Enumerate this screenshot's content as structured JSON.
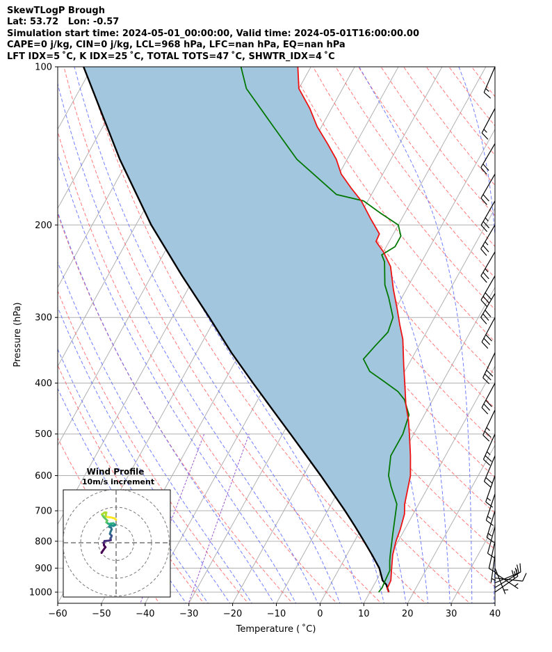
{
  "header": {
    "title": "SkewTLogP Brough",
    "location": "Lat: 53.72   Lon: -0.57",
    "times": "Simulation start time: 2024-05-01_00:00:00, Valid time: 2024-05-01T16:00:00.00",
    "indices_1": "CAPE=0 j/kg, CIN=0 j/kg, LCL=968 hPa, LFC=nan hPa, EQ=nan hPa",
    "indices_2": "LFT IDX=5 ˚C, K IDX=25 ˚C, TOTAL TOTS=47 ˚C, SHWTR_IDX=4 ˚C"
  },
  "chart_data": {
    "type": "line",
    "subtype": "skew-T log-P diagram",
    "xlabel": "Temperature ( ˚C)",
    "ylabel": "Pressure (hPa)",
    "xlim": [
      -60,
      40
    ],
    "ylim": [
      1050,
      100
    ],
    "y_scale": "log",
    "x_ticks": [
      "−60",
      "−50",
      "−40",
      "−30",
      "−20",
      "−10",
      "0",
      "10",
      "20",
      "30",
      "40"
    ],
    "y_ticks": [
      "100",
      "200",
      "300",
      "400",
      "500",
      "600",
      "700",
      "800",
      "900",
      "1000"
    ],
    "grid": true,
    "colors": {
      "temperature": "#ee1111",
      "dewpoint": "#007700",
      "parcel": "#000000",
      "area": "#a3c6df",
      "dry_adiabat": "#ff6060",
      "moist_adiabat": "#4d5fff",
      "mixing_ratio": "#9955cc",
      "isotherm": "#b0b0b0"
    },
    "series": [
      {
        "role": "temperature",
        "points": [
          [
            14.3,
            1000
          ],
          [
            13.5,
            985
          ],
          [
            13.3,
            950
          ],
          [
            12.2,
            910
          ],
          [
            10.5,
            850
          ],
          [
            9.5,
            800
          ],
          [
            9.0,
            760
          ],
          [
            8.0,
            710
          ],
          [
            6.8,
            680
          ],
          [
            4.5,
            600
          ],
          [
            2.0,
            550
          ],
          [
            -1.0,
            500
          ],
          [
            -3.0,
            470
          ],
          [
            -5.5,
            440
          ],
          [
            -8.5,
            400
          ],
          [
            -11.0,
            370
          ],
          [
            -14.5,
            330
          ],
          [
            -17.0,
            310
          ],
          [
            -19.5,
            290
          ],
          [
            -23.0,
            265
          ],
          [
            -26.5,
            240
          ],
          [
            -30.0,
            225
          ],
          [
            -33.0,
            215
          ],
          [
            -33.2,
            208
          ],
          [
            -37.0,
            195
          ],
          [
            -41.5,
            180
          ],
          [
            -45.5,
            170
          ],
          [
            -49.5,
            160
          ],
          [
            -52.5,
            150
          ],
          [
            -56.5,
            140
          ],
          [
            -61.0,
            130
          ],
          [
            -65.0,
            120
          ],
          [
            -70.0,
            110
          ],
          [
            -73.0,
            100
          ]
        ]
      },
      {
        "role": "dewpoint",
        "points": [
          [
            12.0,
            1000
          ],
          [
            12.2,
            980
          ],
          [
            12.0,
            950
          ],
          [
            11.8,
            910
          ],
          [
            10.5,
            870
          ],
          [
            9.8,
            845
          ],
          [
            8.0,
            780
          ],
          [
            5.0,
            680
          ],
          [
            1.5,
            630
          ],
          [
            -0.5,
            600
          ],
          [
            -2.5,
            550
          ],
          [
            -2.5,
            500
          ],
          [
            -3.5,
            460
          ],
          [
            -6.5,
            430
          ],
          [
            -9.0,
            415
          ],
          [
            -14.0,
            395
          ],
          [
            -18.0,
            380
          ],
          [
            -21.0,
            360
          ],
          [
            -20.0,
            340
          ],
          [
            -18.8,
            320
          ],
          [
            -19.5,
            300
          ],
          [
            -23.0,
            275
          ],
          [
            -25.5,
            260
          ],
          [
            -28.5,
            235
          ],
          [
            -30.0,
            228
          ],
          [
            -28.0,
            220
          ],
          [
            -28.0,
            210
          ],
          [
            -30.0,
            200
          ],
          [
            -35.5,
            190
          ],
          [
            -41.0,
            180
          ],
          [
            -48.0,
            175
          ],
          [
            -61.5,
            150
          ],
          [
            -71.0,
            130
          ],
          [
            -82.0,
            110
          ],
          [
            -86.0,
            100
          ]
        ]
      },
      {
        "role": "parcel",
        "points": [
          [
            14.3,
            1000
          ],
          [
            12.8,
            968
          ],
          [
            11.4,
            950
          ],
          [
            9.1,
            900
          ],
          [
            5.8,
            850
          ],
          [
            2.2,
            800
          ],
          [
            -1.7,
            750
          ],
          [
            -6.0,
            700
          ],
          [
            -10.8,
            650
          ],
          [
            -16.0,
            600
          ],
          [
            -21.8,
            550
          ],
          [
            -28.2,
            500
          ],
          [
            -35.3,
            450
          ],
          [
            -43.2,
            400
          ],
          [
            -52.0,
            350
          ],
          [
            -61.5,
            300
          ],
          [
            -73.0,
            250
          ],
          [
            -86.5,
            200
          ],
          [
            -102.0,
            150
          ],
          [
            -122.0,
            100
          ]
        ]
      }
    ],
    "wind_barbs": [
      {
        "p": 1000,
        "u": -8.2,
        "v": -5.7
      },
      {
        "p": 980,
        "u": -7.5,
        "v": -4.5
      },
      {
        "p": 960,
        "u": -6.0,
        "v": -2.5
      },
      {
        "p": 940,
        "u": -4.5,
        "v": 0.5
      },
      {
        "p": 920,
        "u": -3.0,
        "v": 2.0
      },
      {
        "p": 900,
        "u": -1.0,
        "v": 2.5
      },
      {
        "p": 850,
        "u": 0.5,
        "v": 3.5
      },
      {
        "p": 800,
        "u": 1.0,
        "v": 4.5
      },
      {
        "p": 750,
        "u": 1.5,
        "v": 5.5
      },
      {
        "p": 700,
        "u": 2.0,
        "v": 6.5
      },
      {
        "p": 650,
        "u": 2.5,
        "v": 7.5
      },
      {
        "p": 600,
        "u": 3.0,
        "v": 8.5
      },
      {
        "p": 550,
        "u": 4.0,
        "v": 9.5
      },
      {
        "p": 500,
        "u": 5.0,
        "v": 11.0
      },
      {
        "p": 450,
        "u": 6.0,
        "v": 12.5
      },
      {
        "p": 400,
        "u": 7.0,
        "v": 13.0
      },
      {
        "p": 350,
        "u": 6.5,
        "v": 13.5
      },
      {
        "p": 300,
        "u": 7.5,
        "v": 14.0
      },
      {
        "p": 270,
        "u": 8.0,
        "v": 13.5
      },
      {
        "p": 250,
        "u": 7.5,
        "v": 13.0
      },
      {
        "p": 225,
        "u": 7.0,
        "v": 12.0
      },
      {
        "p": 200,
        "u": 6.5,
        "v": 11.0
      },
      {
        "p": 180,
        "u": 6.0,
        "v": 10.5
      },
      {
        "p": 160,
        "u": 5.5,
        "v": 9.5
      },
      {
        "p": 140,
        "u": 5.0,
        "v": 8.5
      },
      {
        "p": 120,
        "u": 4.0,
        "v": 7.5
      },
      {
        "p": 100,
        "u": 3.0,
        "v": 7.0
      }
    ],
    "hodograph": {
      "title": "Wind Profile",
      "subtitle": "10m/s increment",
      "ring_step": 10,
      "rings": [
        10,
        20,
        30
      ],
      "points": [
        [
          -8.2,
          -5.7
        ],
        [
          -7.5,
          -4.5
        ],
        [
          -6.0,
          -2.5
        ],
        [
          -6.8,
          -1.5
        ],
        [
          -7.0,
          0.0
        ],
        [
          -6.5,
          1.0
        ],
        [
          -4.0,
          1.2
        ],
        [
          -3.0,
          1.5
        ],
        [
          -3.2,
          2.5
        ],
        [
          -2.8,
          3.0
        ],
        [
          -2.5,
          4.0
        ],
        [
          -3.5,
          5.0
        ],
        [
          -3.0,
          6.5
        ],
        [
          -2.5,
          7.5
        ],
        [
          -2.8,
          8.5
        ],
        [
          -4.0,
          9.0
        ],
        [
          -3.2,
          10.0
        ],
        [
          -1.5,
          9.5
        ],
        [
          -0.5,
          10.0
        ],
        [
          -1.5,
          11.0
        ],
        [
          -3.0,
          10.8
        ],
        [
          -4.0,
          10.5
        ],
        [
          -5.5,
          11.5
        ],
        [
          -5.0,
          12.5
        ],
        [
          -6.0,
          13.5
        ],
        [
          -7.0,
          14.5
        ],
        [
          -8.0,
          16.0
        ],
        [
          -6.5,
          17.0
        ],
        [
          -5.5,
          17.0
        ],
        [
          -6.0,
          15.0
        ],
        [
          -5.0,
          14.5
        ],
        [
          -3.0,
          14.3
        ],
        [
          -1.0,
          13.8
        ],
        [
          0.0,
          13.0
        ]
      ]
    }
  }
}
